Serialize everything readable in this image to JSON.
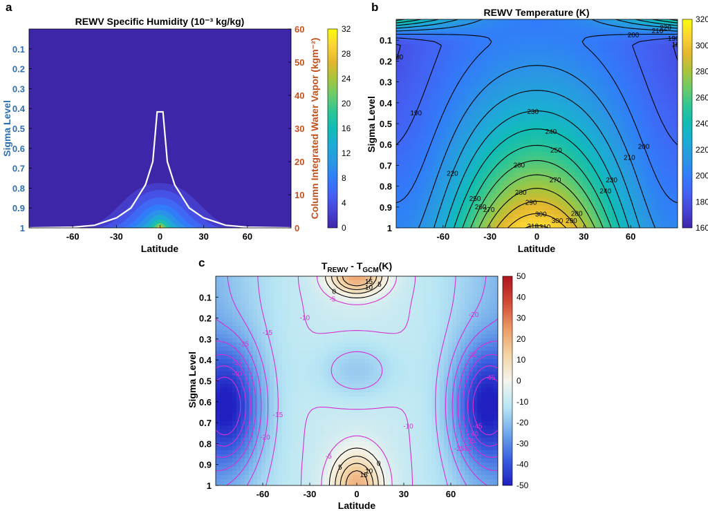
{
  "colors": {
    "colormap": [
      "#3e26a8",
      "#4743d5",
      "#4361f4",
      "#317df9",
      "#2a97e3",
      "#1cacd5",
      "#10bcb6",
      "#2dc595",
      "#69cb6b",
      "#a7c53c",
      "#e2b72f",
      "#fbd434",
      "#f9fb0e"
    ],
    "diverging": [
      "#2020c0",
      "#3a5fe0",
      "#70a8ea",
      "#b8e6f4",
      "#f4f4ec",
      "#f3d4a4",
      "#ec9a66",
      "#d04a36",
      "#b01420"
    ],
    "moisture_axis": "#c4501c",
    "sigma_axis": "#2d6eb0",
    "column_line": "#ffffff",
    "positive_contour": "#000000",
    "negative_contour": "#d430d4"
  },
  "panels": {
    "a": {
      "label": "a",
      "title": "REWV Specific Humidity (10⁻³ kg/kg)",
      "ylabel_left": "Sigma Level",
      "ylabel_right": "Column Integrated Water Vapor (kgm⁻²)",
      "xlabel": "Latitude",
      "yticks": [
        "0.1",
        "0.2",
        "0.3",
        "0.4",
        "0.5",
        "0.6",
        "0.7",
        "0.8",
        "0.9",
        "1"
      ],
      "xticks": [
        "-60",
        "-30",
        "0",
        "30",
        "60"
      ],
      "right_ticks": [
        "0",
        "10",
        "20",
        "30",
        "40",
        "50",
        "60"
      ],
      "colorbar_ticks": [
        "0",
        "4",
        "8",
        "12",
        "16",
        "20",
        "24",
        "28",
        "32"
      ]
    },
    "b": {
      "label": "b",
      "title": "REWV Temperature (K)",
      "ylabel": "Sigma Level",
      "xlabel": "Latitude",
      "yticks": [
        "0.1",
        "0.2",
        "0.3",
        "0.4",
        "0.5",
        "0.6",
        "0.7",
        "0.8",
        "0.9",
        "1"
      ],
      "xticks": [
        "-60",
        "-30",
        "0",
        "30",
        "60"
      ],
      "colorbar_ticks": [
        "160",
        "180",
        "200",
        "220",
        "240",
        "260",
        "280",
        "300",
        "320"
      ]
    },
    "c": {
      "label": "c",
      "title_main": "T",
      "title_sub1": "REWV",
      "title_mid": " - T",
      "title_sub2": "GCM",
      "title_end": "(K)",
      "ylabel": "Sigma Level",
      "xlabel": "Latitude",
      "yticks": [
        "0.1",
        "0.2",
        "0.3",
        "0.4",
        "0.5",
        "0.6",
        "0.7",
        "0.8",
        "0.9",
        "1"
      ],
      "xticks": [
        "-60",
        "-30",
        "0",
        "30",
        "60"
      ],
      "colorbar_ticks": [
        "50",
        "40",
        "30",
        "20",
        "10",
        "0",
        "-10",
        "-20",
        "-30",
        "-40",
        "-50"
      ]
    }
  },
  "chart_data": [
    {
      "type": "heatmap",
      "title": "REWV Specific Humidity (10⁻³ kg/kg)",
      "xlabel": "Latitude",
      "ylabel": "Sigma Level",
      "y2label": "Column Integrated Water Vapor (kgm⁻²)",
      "xlim": [
        -90,
        90
      ],
      "ylim": [
        1,
        0
      ],
      "y2lim": [
        0,
        60
      ],
      "clim": [
        0,
        32
      ],
      "grid": false,
      "field": "specific humidity maximum ~32 at equator surface, decaying poleward and upward, near 0 above sigma 0.8",
      "series": [
        {
          "name": "",
          "kind": "line",
          "x": [
            -90,
            -60,
            -45,
            -30,
            -20,
            -10,
            -5,
            -2,
            0,
            2,
            5,
            10,
            20,
            30,
            45,
            60,
            90
          ],
          "y": [
            0,
            0.2,
            0.8,
            3,
            6,
            13,
            20,
            35,
            35,
            35,
            20,
            13,
            6,
            3,
            0.8,
            0.2,
            0
          ]
        }
      ]
    },
    {
      "type": "heatmap",
      "title": "REWV Temperature (K)",
      "xlabel": "Latitude",
      "ylabel": "Sigma Level",
      "xlim": [
        -90,
        90
      ],
      "ylim": [
        1,
        0
      ],
      "clim": [
        160,
        320
      ],
      "grid": false,
      "contour_levels": [
        180,
        190,
        200,
        210,
        220,
        230,
        240,
        250,
        260,
        270,
        280,
        290,
        300,
        310
      ],
      "surface_temperature": {
        "x": [
          -90,
          -60,
          -30,
          0,
          30,
          60,
          90
        ],
        "y": [
          205,
          225,
          265,
          312,
          265,
          225,
          205
        ]
      }
    },
    {
      "type": "heatmap",
      "title": "TREWV - TGCM(K)",
      "xlabel": "Latitude",
      "ylabel": "Sigma Level",
      "xlim": [
        -90,
        90
      ],
      "ylim": [
        1,
        0
      ],
      "clim": [
        -50,
        50
      ],
      "grid": false,
      "contour_levels": [
        -45,
        -40,
        -35,
        -30,
        -25,
        -20,
        -15,
        -10,
        -5,
        0,
        5,
        10,
        15
      ],
      "extremes": {
        "upper_equator_max": 15,
        "surface_equator_max": 15,
        "midlatitude_min": -50
      }
    }
  ]
}
